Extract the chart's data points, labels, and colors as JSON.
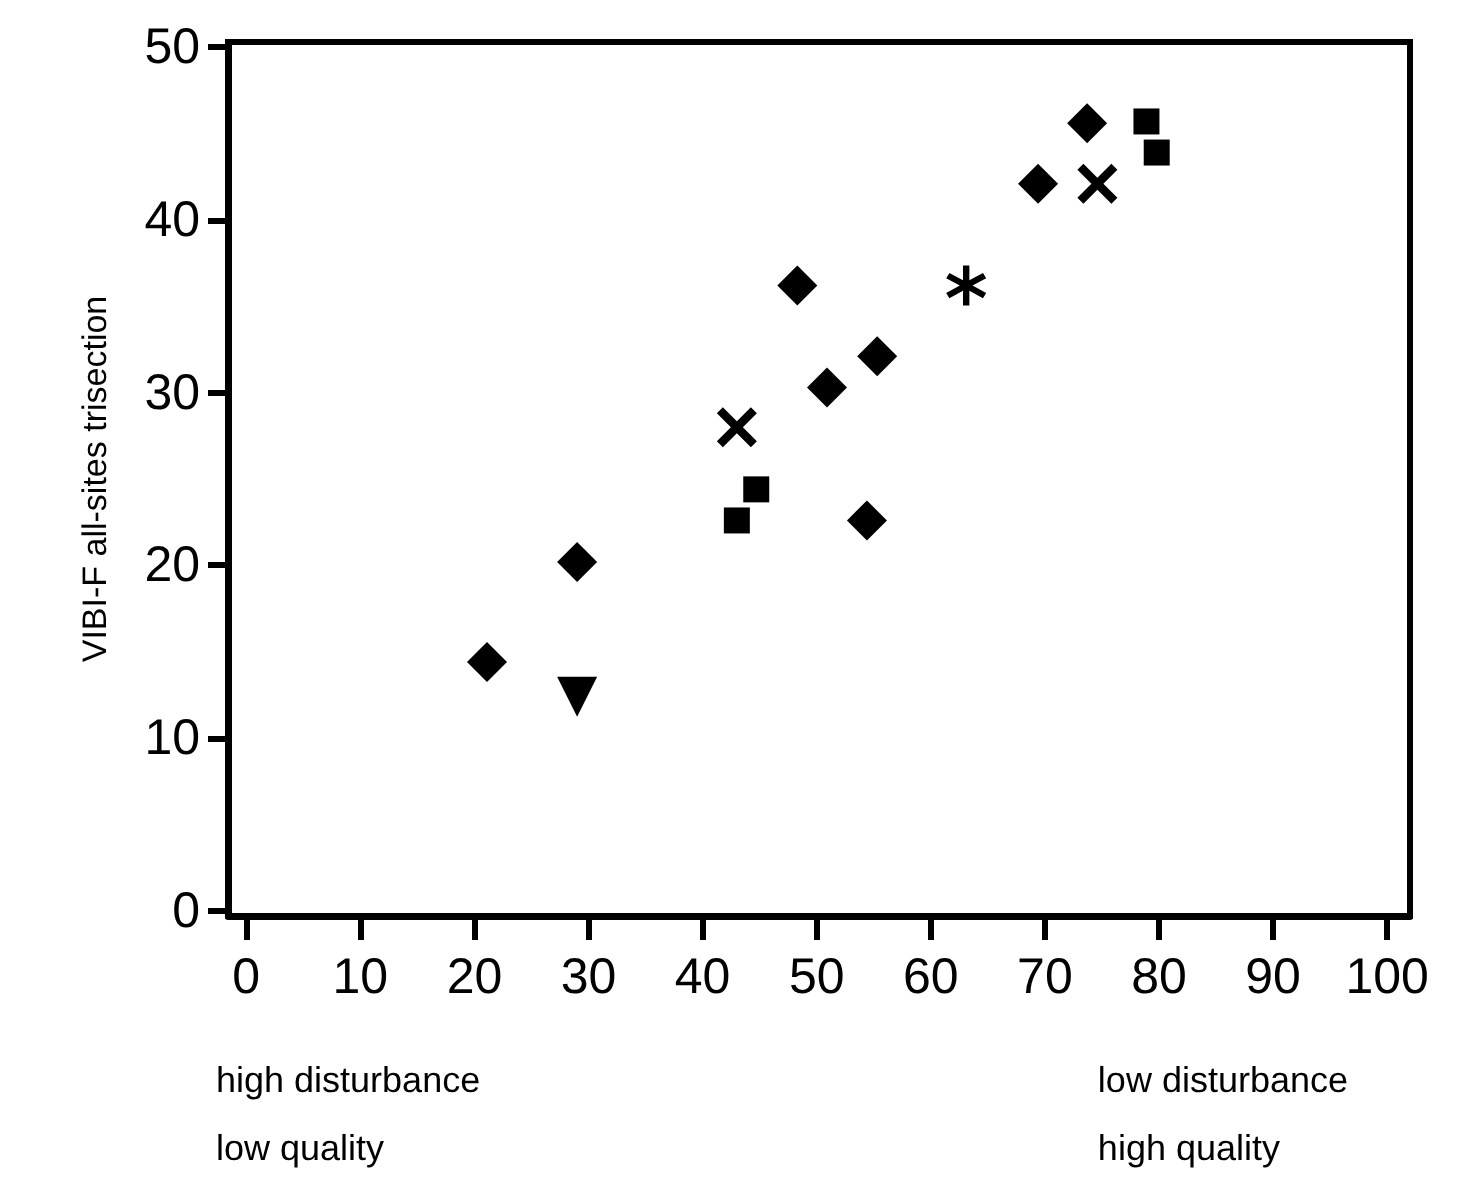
{
  "chart_data": {
    "type": "scatter",
    "ylabel": "VIBI-F all-sites trisection",
    "annotations": [
      "high disturbance\nlow quality",
      "low disturbance\nhigh quality"
    ],
    "xlim": [
      -1.6,
      102
    ],
    "xticks": [
      0,
      10,
      20,
      30,
      40,
      50,
      60,
      70,
      80,
      90,
      100
    ],
    "ylim": [
      -0.3,
      50.3
    ],
    "yticks": [
      0,
      10,
      20,
      30,
      40,
      50
    ],
    "grid": false,
    "series": [
      {
        "marker": "diamond",
        "color": "#000000",
        "x": [
          21.1,
          29.0,
          48.3,
          50.9,
          55.3,
          54.4,
          69.4,
          73.7
        ],
        "values": [
          14.4,
          20.2,
          36.2,
          30.3,
          32.1,
          22.6,
          42.1,
          45.6
        ]
      },
      {
        "marker": "square",
        "color": "#000000",
        "x": [
          43.0,
          44.7,
          78.9,
          79.8
        ],
        "values": [
          22.6,
          24.4,
          45.7,
          43.9
        ]
      },
      {
        "marker": "triangle",
        "color": "#000000",
        "x": [
          29.0
        ],
        "values": [
          12.4
        ]
      },
      {
        "marker": "cross",
        "color": "#000000",
        "x": [
          43.0,
          74.6
        ],
        "values": [
          28.0,
          42.1
        ]
      },
      {
        "marker": "star",
        "color": "#000000",
        "x": [
          63.1
        ],
        "values": [
          36.2
        ]
      }
    ]
  }
}
